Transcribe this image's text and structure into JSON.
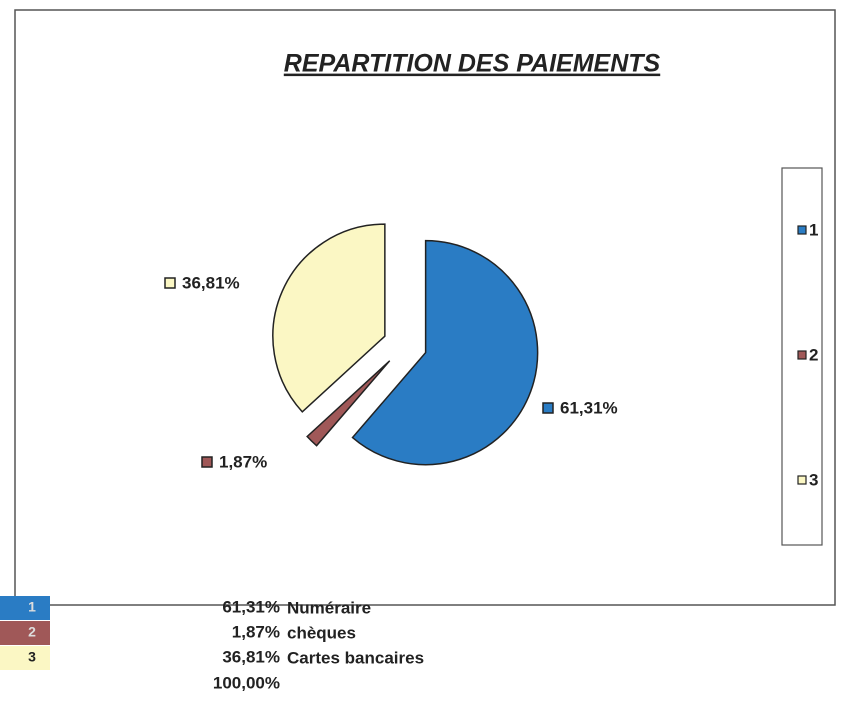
{
  "chart_data": {
    "type": "pie",
    "title": "REPARTITION DES PAIEMENTS",
    "categories": [
      "1",
      "2",
      "3"
    ],
    "values": [
      61.31,
      1.87,
      36.81
    ],
    "value_labels": [
      "61,31%",
      "1,87%",
      "36,81%"
    ],
    "colors": [
      "#2a7cc4",
      "#a05858",
      "#fbf7c4"
    ],
    "legend": "right"
  },
  "table": {
    "rows": [
      [
        "1",
        "61,31%",
        "Numéraire"
      ],
      [
        "2",
        "1,87%",
        "chèques"
      ],
      [
        "3",
        "36,81%",
        "Cartes bancaires"
      ]
    ],
    "total": "100,00%"
  }
}
